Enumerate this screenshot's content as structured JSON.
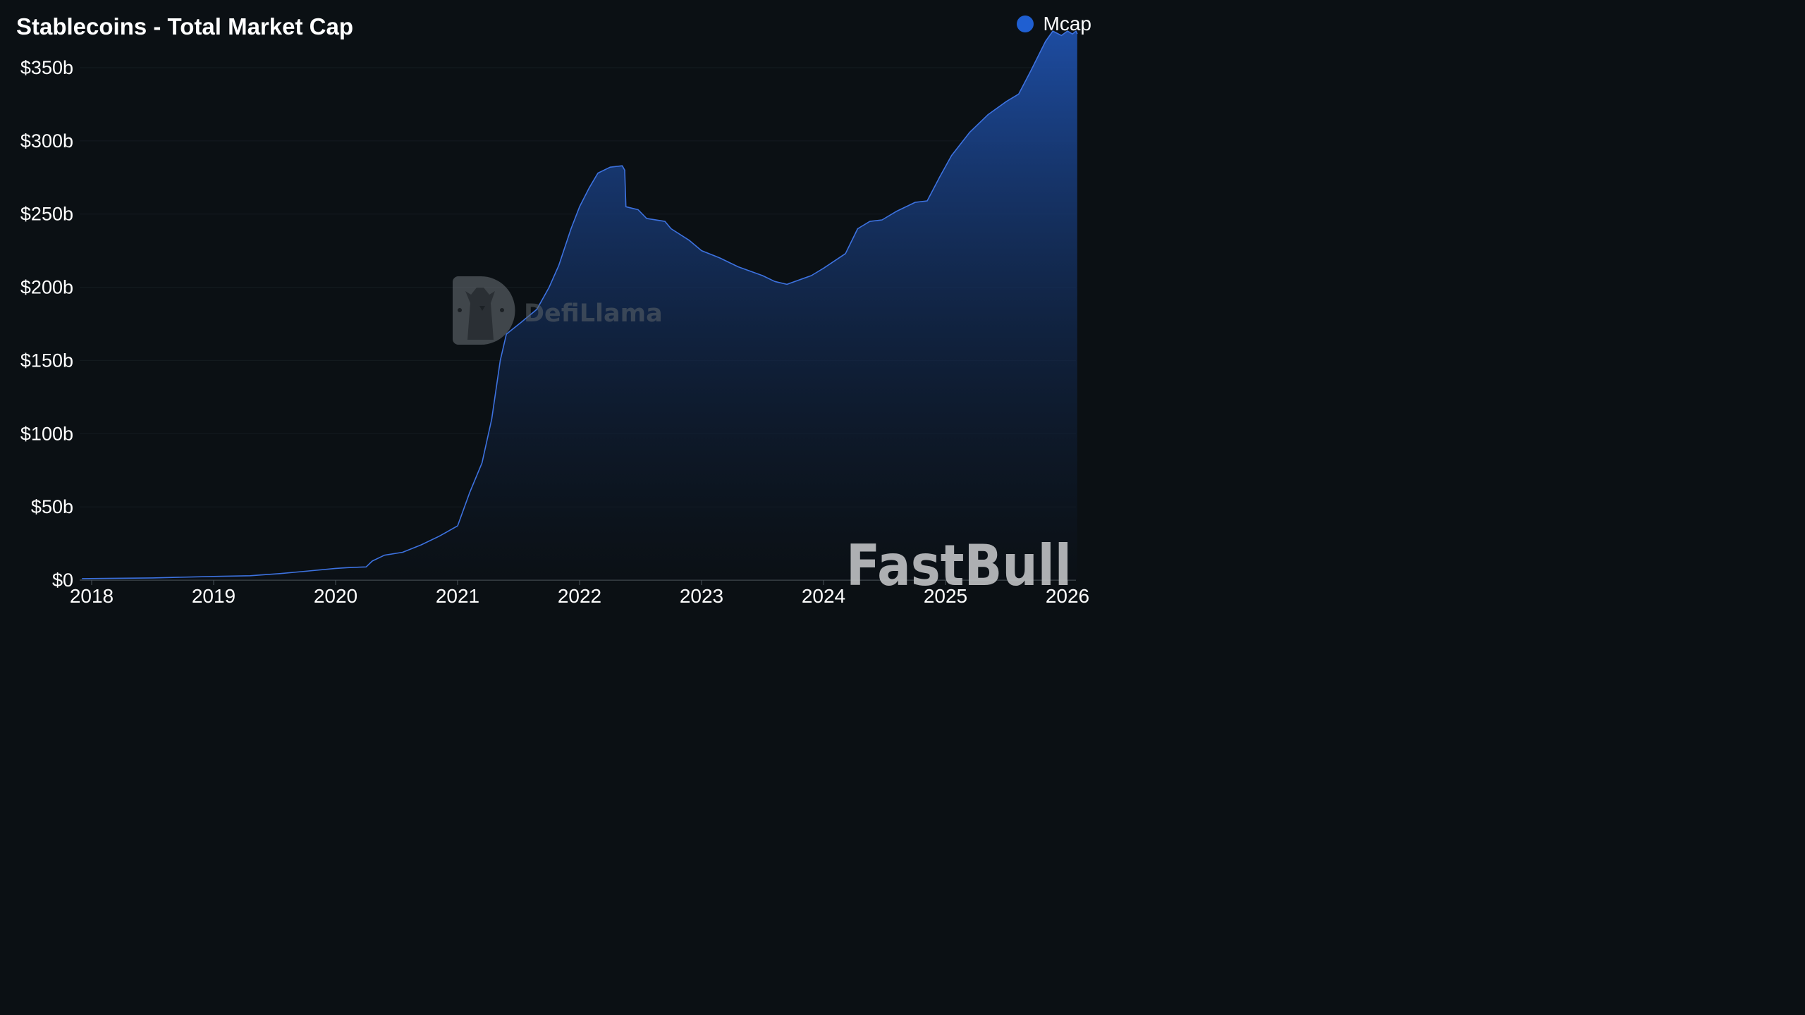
{
  "title": "Stablecoins - Total Market Cap",
  "legend": {
    "label": "Mcap",
    "color": "#1f5fd1"
  },
  "watermarks": {
    "center": "DefiLlama",
    "bottom_right": "FastBull"
  },
  "colors": {
    "line": "#3d72e0",
    "fill_top": "#1e4fa8",
    "fill_bottom": "#0b1118",
    "background": "#0b1014"
  },
  "chart_data": {
    "type": "area",
    "title": "Stablecoins - Total Market Cap",
    "series_name": "Mcap",
    "y_unit": "billion USD",
    "ylim": [
      0,
      350
    ],
    "y_ticks": [
      0,
      50,
      100,
      150,
      200,
      250,
      300,
      350
    ],
    "y_tick_labels": [
      "$0",
      "$50b",
      "$100b",
      "$150b",
      "$200b",
      "$250b",
      "$300b",
      "$350b"
    ],
    "xlim": [
      2018.0,
      2026.0
    ],
    "x_ticks": [
      2018,
      2019,
      2020,
      2021,
      2022,
      2023,
      2024,
      2025,
      2026
    ],
    "x_tick_labels": [
      "2018",
      "2019",
      "2020",
      "2021",
      "2022",
      "2023",
      "2024",
      "2025",
      "2026"
    ],
    "grid": true,
    "legend_position": "top-right",
    "points": [
      [
        2017.92,
        1.0
      ],
      [
        2018.5,
        1.5
      ],
      [
        2019.0,
        2.5
      ],
      [
        2019.3,
        3.0
      ],
      [
        2019.55,
        4.5
      ],
      [
        2019.75,
        6.0
      ],
      [
        2020.0,
        8.0
      ],
      [
        2020.1,
        8.5
      ],
      [
        2020.25,
        9.0
      ],
      [
        2020.3,
        13.0
      ],
      [
        2020.4,
        17.0
      ],
      [
        2020.55,
        19.0
      ],
      [
        2020.7,
        24.0
      ],
      [
        2020.85,
        30.0
      ],
      [
        2021.0,
        37.0
      ],
      [
        2021.1,
        60.0
      ],
      [
        2021.2,
        80.0
      ],
      [
        2021.28,
        110.0
      ],
      [
        2021.35,
        150.0
      ],
      [
        2021.4,
        168.0
      ],
      [
        2021.52,
        176.0
      ],
      [
        2021.65,
        185.0
      ],
      [
        2021.75,
        200.0
      ],
      [
        2021.83,
        215.0
      ],
      [
        2021.93,
        240.0
      ],
      [
        2022.0,
        255.0
      ],
      [
        2022.08,
        268.0
      ],
      [
        2022.15,
        278.0
      ],
      [
        2022.25,
        282.0
      ],
      [
        2022.35,
        283.0
      ],
      [
        2022.37,
        280.0
      ],
      [
        2022.38,
        255.0
      ],
      [
        2022.48,
        253.0
      ],
      [
        2022.55,
        247.0
      ],
      [
        2022.7,
        245.0
      ],
      [
        2022.75,
        240.0
      ],
      [
        2022.9,
        232.0
      ],
      [
        2023.0,
        225.0
      ],
      [
        2023.15,
        220.0
      ],
      [
        2023.3,
        214.0
      ],
      [
        2023.5,
        208.0
      ],
      [
        2023.6,
        204.0
      ],
      [
        2023.7,
        202.0
      ],
      [
        2023.9,
        208.0
      ],
      [
        2024.0,
        213.0
      ],
      [
        2024.18,
        223.0
      ],
      [
        2024.28,
        240.0
      ],
      [
        2024.38,
        245.0
      ],
      [
        2024.48,
        246.0
      ],
      [
        2024.6,
        252.0
      ],
      [
        2024.75,
        258.0
      ],
      [
        2024.85,
        259.0
      ],
      [
        2024.95,
        275.0
      ],
      [
        2025.05,
        290.0
      ],
      [
        2025.2,
        306.0
      ],
      [
        2025.35,
        318.0
      ],
      [
        2025.5,
        327.0
      ],
      [
        2025.6,
        332.0
      ],
      [
        2025.7,
        348.0
      ],
      [
        2025.82,
        368.0
      ],
      [
        2025.88,
        375.0
      ],
      [
        2025.95,
        372.0
      ],
      [
        2026.0,
        375.0
      ],
      [
        2026.04,
        373.0
      ],
      [
        2026.07,
        375.0
      ],
      [
        2026.08,
        373.0
      ]
    ]
  }
}
